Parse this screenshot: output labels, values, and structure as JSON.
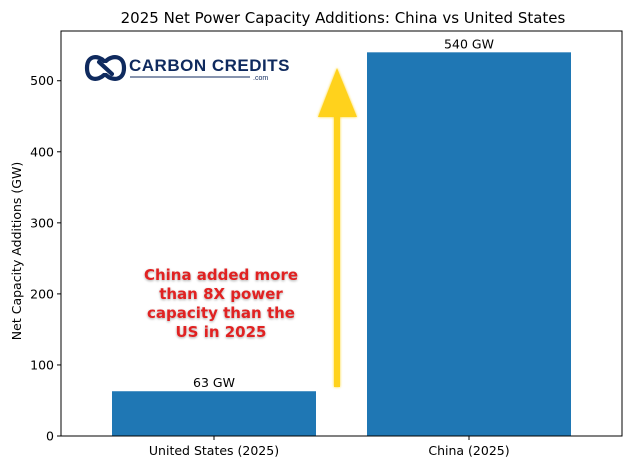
{
  "chart_data": {
    "type": "bar",
    "title": "2025 Net Power Capacity Additions: China vs United States",
    "xlabel": "",
    "ylabel": "Net Capacity Additions (GW)",
    "categories": [
      "United States (2025)",
      "China (2025)"
    ],
    "values": [
      63,
      540
    ],
    "data_labels": [
      "63 GW",
      "540 GW"
    ],
    "ylim": [
      0,
      570
    ],
    "yticks": [
      0,
      100,
      200,
      300,
      400,
      500
    ],
    "bar_color": "#1f77b4",
    "grid": false,
    "annotation": {
      "lines": [
        "China added more",
        "than 8X power",
        "capacity than the",
        "US in 2025"
      ],
      "color": "#e02020"
    },
    "arrow_color": "#ffd21f",
    "logo": {
      "name": "CARBON CREDITS",
      "suffix": ".com",
      "color": "#0f2a5e"
    }
  }
}
